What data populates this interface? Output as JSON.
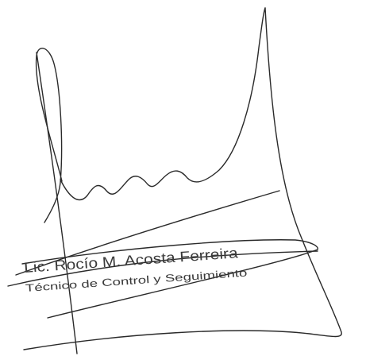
{
  "stamp": {
    "name": "Lic. Rocío M. Acosta Ferreira",
    "role": "Técnico de Control y Seguimiento"
  }
}
